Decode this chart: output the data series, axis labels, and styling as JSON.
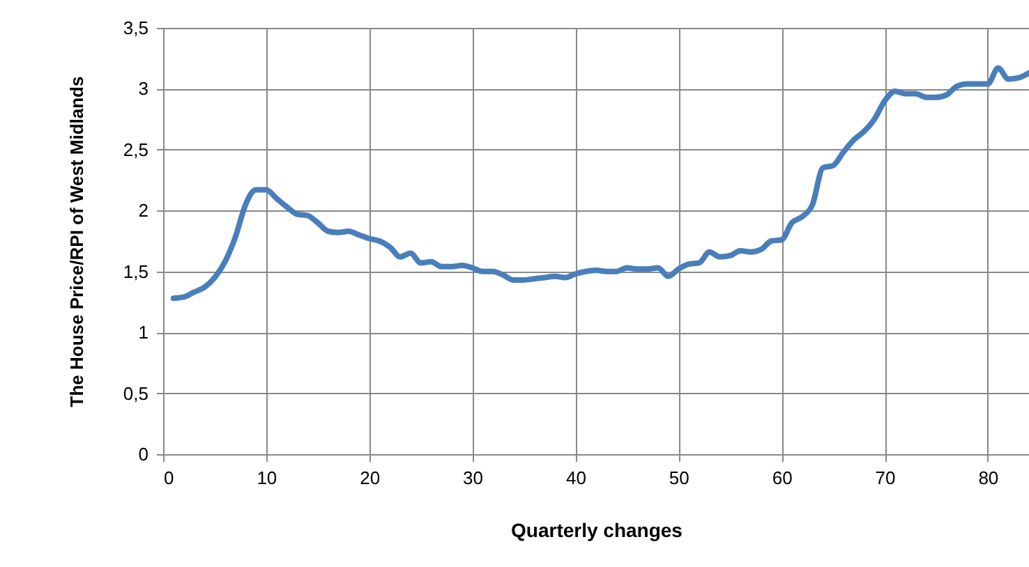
{
  "chart_data": {
    "type": "line",
    "xlabel": "Quarterly changes",
    "ylabel": "The House  Price/RPI of West Midlands",
    "x": [
      1,
      2,
      3,
      4,
      5,
      6,
      7,
      8,
      9,
      10,
      11,
      12,
      13,
      14,
      15,
      16,
      17,
      18,
      19,
      20,
      21,
      22,
      23,
      24,
      25,
      26,
      27,
      28,
      29,
      30,
      31,
      32,
      33,
      34,
      35,
      36,
      37,
      38,
      39,
      40,
      41,
      42,
      43,
      44,
      45,
      46,
      47,
      48,
      49,
      50,
      51,
      52,
      53,
      54,
      55,
      56,
      57,
      58,
      59,
      60,
      61,
      62,
      63,
      64,
      65,
      66,
      67,
      68,
      69,
      70,
      71,
      72,
      73,
      74,
      75,
      76,
      77,
      78,
      79,
      80,
      81,
      82,
      83,
      84
    ],
    "series": [
      {
        "color": "#4a7ebb",
        "values": [
          1.28,
          1.29,
          1.33,
          1.37,
          1.45,
          1.58,
          1.78,
          2.05,
          2.17,
          2.17,
          2.1,
          2.03,
          1.97,
          1.96,
          1.9,
          1.83,
          1.82,
          1.83,
          1.8,
          1.77,
          1.75,
          1.7,
          1.62,
          1.65,
          1.57,
          1.58,
          1.54,
          1.54,
          1.55,
          1.53,
          1.5,
          1.5,
          1.47,
          1.43,
          1.43,
          1.44,
          1.45,
          1.46,
          1.45,
          1.48,
          1.5,
          1.51,
          1.5,
          1.5,
          1.53,
          1.52,
          1.52,
          1.53,
          1.46,
          1.52,
          1.56,
          1.57,
          1.66,
          1.62,
          1.63,
          1.67,
          1.66,
          1.68,
          1.75,
          1.76,
          1.9,
          1.95,
          2.05,
          2.35,
          2.37,
          2.48,
          2.58,
          2.65,
          2.75,
          2.9,
          2.98,
          2.96,
          2.96,
          2.93,
          2.93,
          2.95,
          3.02,
          3.04,
          3.04,
          3.04,
          3.17,
          3.08,
          3.09,
          3.13
        ]
      }
    ],
    "xlim": [
      0,
      84
    ],
    "xticks": [
      0,
      10,
      20,
      30,
      40,
      50,
      60,
      70,
      80
    ],
    "ylim": [
      0,
      3.5
    ],
    "yticks": [
      0,
      {
        "value": 0.5,
        "label": "0,5"
      },
      1,
      {
        "value": 1.5,
        "label": "1,5"
      },
      2,
      {
        "value": 2.5,
        "label": "2,5"
      },
      3,
      {
        "value": 3.5,
        "label": "3,5"
      }
    ],
    "grid": true,
    "marker": "none",
    "line_style": "solid"
  }
}
